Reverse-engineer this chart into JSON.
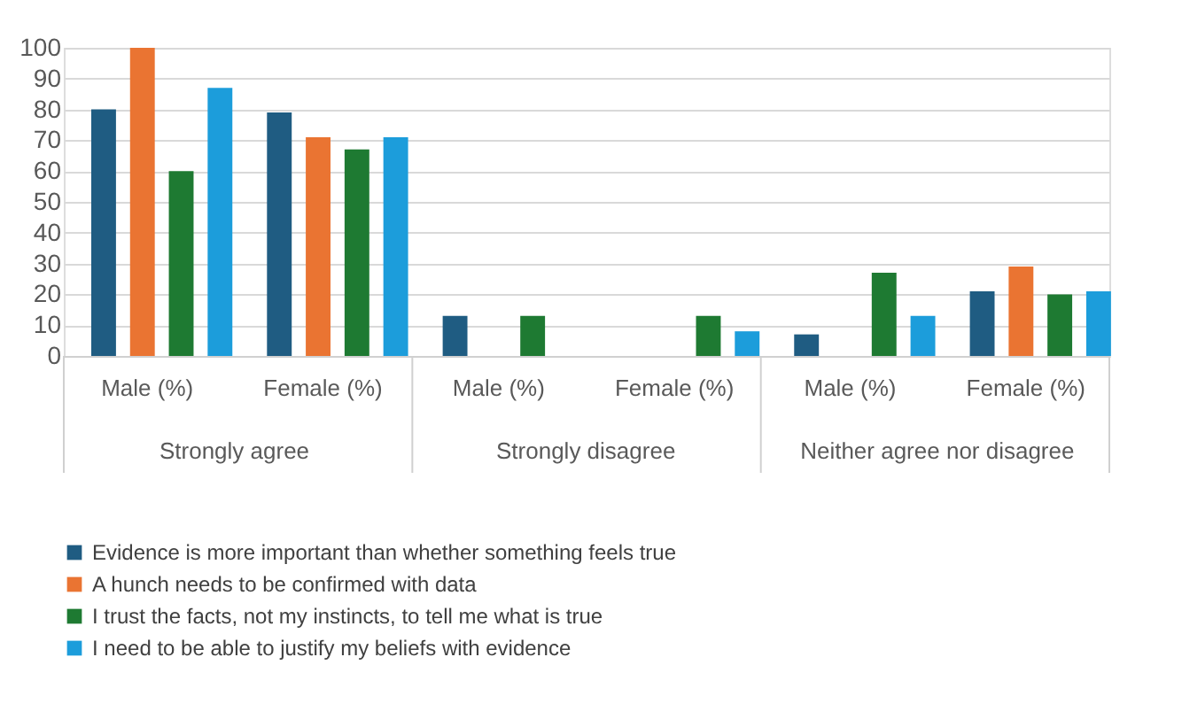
{
  "chart_data": {
    "type": "bar",
    "categories": [
      "Male (%)",
      "Female (%)",
      "Male (%)",
      "Female (%)",
      "Male (%)",
      "Female (%)"
    ],
    "annotations": [
      "Strongly agree",
      "Strongly disagree",
      "Neither agree nor disagree"
    ],
    "series": [
      {
        "name": "Evidence is more important than whether something feels true",
        "color": "#1f5c82",
        "values": [
          80,
          79,
          13,
          null,
          7,
          21
        ]
      },
      {
        "name": "A hunch needs to be confirmed with data",
        "color": "#ea7432",
        "values": [
          100,
          71,
          null,
          null,
          null,
          29
        ]
      },
      {
        "name": "I trust the facts, not my instincts, to tell me what is true",
        "color": "#1e7a32",
        "values": [
          60,
          67,
          13,
          13,
          27,
          20
        ]
      },
      {
        "name": "I need to be able to justify my beliefs with evidence",
        "color": "#1c9ddb",
        "values": [
          87,
          71,
          null,
          8,
          13,
          21
        ]
      }
    ],
    "ylim": [
      0,
      100
    ],
    "yticks": [
      0,
      10,
      20,
      30,
      40,
      50,
      60,
      70,
      80,
      90,
      100
    ],
    "grid": "y",
    "legend": "bottom"
  }
}
